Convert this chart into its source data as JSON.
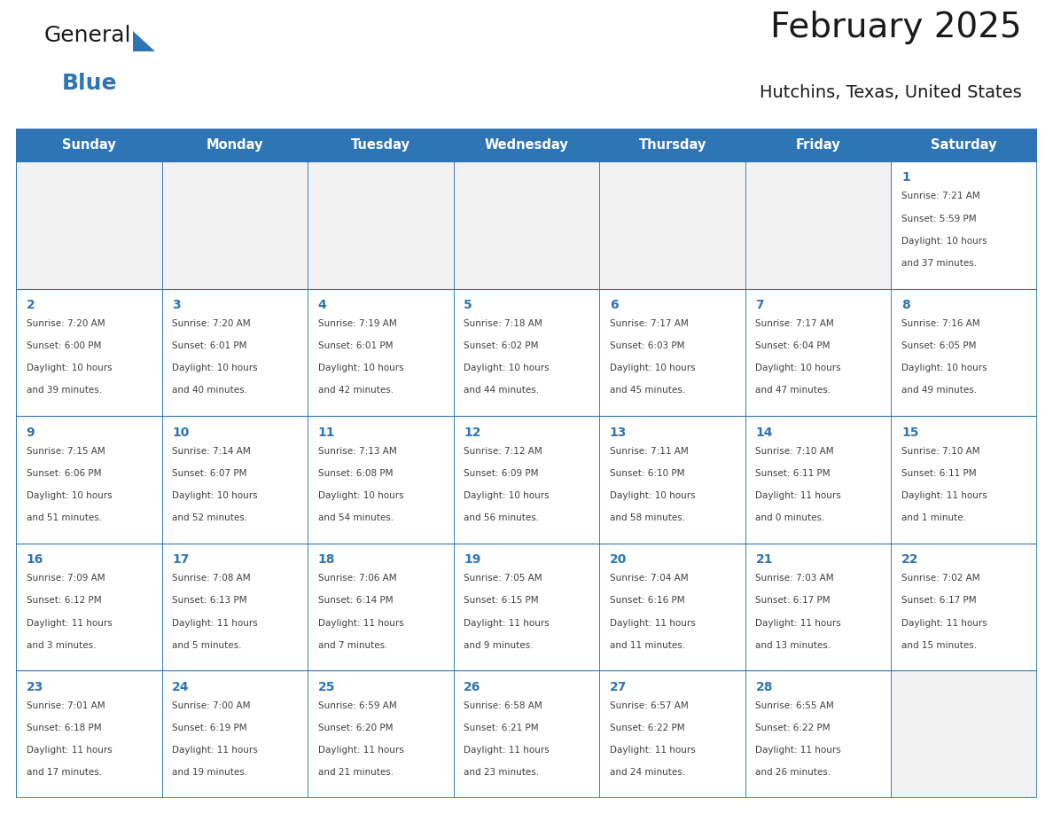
{
  "title": "February 2025",
  "subtitle": "Hutchins, Texas, United States",
  "header_bg": "#2E75B6",
  "header_text_color": "#FFFFFF",
  "cell_bg": "#FFFFFF",
  "empty_cell_bg": "#F2F2F2",
  "cell_border_color": "#2E75B6",
  "day_number_color": "#2E75B6",
  "info_text_color": "#404040",
  "days_of_week": [
    "Sunday",
    "Monday",
    "Tuesday",
    "Wednesday",
    "Thursday",
    "Friday",
    "Saturday"
  ],
  "weeks": [
    [
      null,
      null,
      null,
      null,
      null,
      null,
      1
    ],
    [
      2,
      3,
      4,
      5,
      6,
      7,
      8
    ],
    [
      9,
      10,
      11,
      12,
      13,
      14,
      15
    ],
    [
      16,
      17,
      18,
      19,
      20,
      21,
      22
    ],
    [
      23,
      24,
      25,
      26,
      27,
      28,
      null
    ]
  ],
  "day_data": {
    "1": {
      "sunrise": "7:21 AM",
      "sunset": "5:59 PM",
      "daylight_hours": 10,
      "daylight_minutes": 37
    },
    "2": {
      "sunrise": "7:20 AM",
      "sunset": "6:00 PM",
      "daylight_hours": 10,
      "daylight_minutes": 39
    },
    "3": {
      "sunrise": "7:20 AM",
      "sunset": "6:01 PM",
      "daylight_hours": 10,
      "daylight_minutes": 40
    },
    "4": {
      "sunrise": "7:19 AM",
      "sunset": "6:01 PM",
      "daylight_hours": 10,
      "daylight_minutes": 42
    },
    "5": {
      "sunrise": "7:18 AM",
      "sunset": "6:02 PM",
      "daylight_hours": 10,
      "daylight_minutes": 44
    },
    "6": {
      "sunrise": "7:17 AM",
      "sunset": "6:03 PM",
      "daylight_hours": 10,
      "daylight_minutes": 45
    },
    "7": {
      "sunrise": "7:17 AM",
      "sunset": "6:04 PM",
      "daylight_hours": 10,
      "daylight_minutes": 47
    },
    "8": {
      "sunrise": "7:16 AM",
      "sunset": "6:05 PM",
      "daylight_hours": 10,
      "daylight_minutes": 49
    },
    "9": {
      "sunrise": "7:15 AM",
      "sunset": "6:06 PM",
      "daylight_hours": 10,
      "daylight_minutes": 51
    },
    "10": {
      "sunrise": "7:14 AM",
      "sunset": "6:07 PM",
      "daylight_hours": 10,
      "daylight_minutes": 52
    },
    "11": {
      "sunrise": "7:13 AM",
      "sunset": "6:08 PM",
      "daylight_hours": 10,
      "daylight_minutes": 54
    },
    "12": {
      "sunrise": "7:12 AM",
      "sunset": "6:09 PM",
      "daylight_hours": 10,
      "daylight_minutes": 56
    },
    "13": {
      "sunrise": "7:11 AM",
      "sunset": "6:10 PM",
      "daylight_hours": 10,
      "daylight_minutes": 58
    },
    "14": {
      "sunrise": "7:10 AM",
      "sunset": "6:11 PM",
      "daylight_hours": 11,
      "daylight_minutes": 0
    },
    "15": {
      "sunrise": "7:10 AM",
      "sunset": "6:11 PM",
      "daylight_hours": 11,
      "daylight_minutes": 1
    },
    "16": {
      "sunrise": "7:09 AM",
      "sunset": "6:12 PM",
      "daylight_hours": 11,
      "daylight_minutes": 3
    },
    "17": {
      "sunrise": "7:08 AM",
      "sunset": "6:13 PM",
      "daylight_hours": 11,
      "daylight_minutes": 5
    },
    "18": {
      "sunrise": "7:06 AM",
      "sunset": "6:14 PM",
      "daylight_hours": 11,
      "daylight_minutes": 7
    },
    "19": {
      "sunrise": "7:05 AM",
      "sunset": "6:15 PM",
      "daylight_hours": 11,
      "daylight_minutes": 9
    },
    "20": {
      "sunrise": "7:04 AM",
      "sunset": "6:16 PM",
      "daylight_hours": 11,
      "daylight_minutes": 11
    },
    "21": {
      "sunrise": "7:03 AM",
      "sunset": "6:17 PM",
      "daylight_hours": 11,
      "daylight_minutes": 13
    },
    "22": {
      "sunrise": "7:02 AM",
      "sunset": "6:17 PM",
      "daylight_hours": 11,
      "daylight_minutes": 15
    },
    "23": {
      "sunrise": "7:01 AM",
      "sunset": "6:18 PM",
      "daylight_hours": 11,
      "daylight_minutes": 17
    },
    "24": {
      "sunrise": "7:00 AM",
      "sunset": "6:19 PM",
      "daylight_hours": 11,
      "daylight_minutes": 19
    },
    "25": {
      "sunrise": "6:59 AM",
      "sunset": "6:20 PM",
      "daylight_hours": 11,
      "daylight_minutes": 21
    },
    "26": {
      "sunrise": "6:58 AM",
      "sunset": "6:21 PM",
      "daylight_hours": 11,
      "daylight_minutes": 23
    },
    "27": {
      "sunrise": "6:57 AM",
      "sunset": "6:22 PM",
      "daylight_hours": 11,
      "daylight_minutes": 24
    },
    "28": {
      "sunrise": "6:55 AM",
      "sunset": "6:22 PM",
      "daylight_hours": 11,
      "daylight_minutes": 26
    }
  },
  "logo_text1": "General",
  "logo_text2": "Blue",
  "logo_color1": "#1a1a1a",
  "logo_color2": "#2E75B6",
  "logo_triangle_color": "#2E75B6",
  "bg_color": "#FFFFFF",
  "outer_border_color": "#2E75B6",
  "num_weeks": 5,
  "num_cols": 7,
  "fig_width": 11.88,
  "fig_height": 9.18,
  "header_fontsize": 10.5,
  "day_num_fontsize": 10,
  "info_fontsize": 7.5,
  "title_fontsize": 28,
  "subtitle_fontsize": 14
}
